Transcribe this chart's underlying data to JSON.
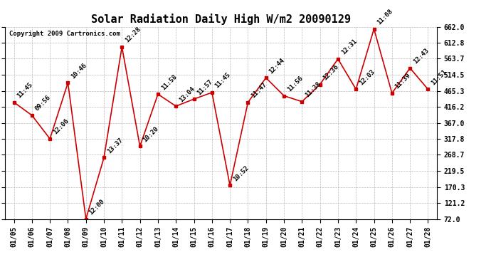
{
  "title": "Solar Radiation Daily High W/m2 20090129",
  "copyright": "Copyright 2009 Cartronics.com",
  "dates": [
    "01/05",
    "01/06",
    "01/07",
    "01/08",
    "01/09",
    "01/10",
    "01/11",
    "01/12",
    "01/13",
    "01/14",
    "01/15",
    "01/16",
    "01/17",
    "01/18",
    "01/19",
    "01/20",
    "01/21",
    "01/22",
    "01/23",
    "01/24",
    "01/25",
    "01/26",
    "01/27",
    "01/28"
  ],
  "values": [
    430,
    390,
    318,
    490,
    72,
    260,
    600,
    295,
    455,
    418,
    440,
    460,
    175,
    430,
    505,
    450,
    432,
    485,
    563,
    470,
    655,
    458,
    535,
    470
  ],
  "labels": [
    "11:45",
    "09:56",
    "12:06",
    "10:46",
    "12:00",
    "13:37",
    "12:28",
    "10:20",
    "11:58",
    "13:04",
    "11:57",
    "11:45",
    "10:52",
    "11:47",
    "12:44",
    "11:56",
    "11:38",
    "12:36",
    "12:31",
    "12:03",
    "11:08",
    "11:39",
    "12:43",
    "11:51"
  ],
  "line_color": "#cc0000",
  "marker_color": "#cc0000",
  "bg_color": "#ffffff",
  "plot_bg_color": "#ffffff",
  "grid_color": "#bbbbbb",
  "title_fontsize": 11,
  "label_fontsize": 6.5,
  "tick_fontsize": 7,
  "copyright_fontsize": 6.5,
  "ylim": [
    72.0,
    662.0
  ],
  "yticks": [
    72.0,
    121.2,
    170.3,
    219.5,
    268.7,
    317.8,
    367.0,
    416.2,
    465.3,
    514.5,
    563.7,
    612.8,
    662.0
  ]
}
